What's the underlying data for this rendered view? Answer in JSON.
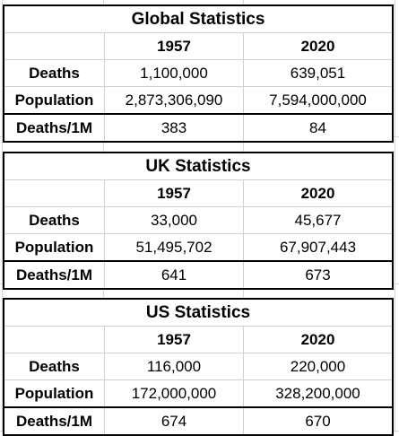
{
  "tables": [
    {
      "title": "Global Statistics",
      "headers": [
        "",
        "1957",
        "2020"
      ],
      "rows": [
        {
          "label": "Deaths",
          "v1957": "1,100,000",
          "v2020": "639,051"
        },
        {
          "label": "Population",
          "v1957": "2,873,306,090",
          "v2020": "7,594,000,000"
        },
        {
          "label": "Deaths/1M",
          "v1957": "383",
          "v2020": "84"
        }
      ]
    },
    {
      "title": "UK Statistics",
      "headers": [
        "",
        "1957",
        "2020"
      ],
      "rows": [
        {
          "label": "Deaths",
          "v1957": "33,000",
          "v2020": "45,677"
        },
        {
          "label": "Population",
          "v1957": "51,495,702",
          "v2020": "67,907,443"
        },
        {
          "label": "Deaths/1M",
          "v1957": "641",
          "v2020": "673"
        }
      ]
    },
    {
      "title": "US Statistics",
      "headers": [
        "",
        "1957",
        "2020"
      ],
      "rows": [
        {
          "label": "Deaths",
          "v1957": "116,000",
          "v2020": "220,000"
        },
        {
          "label": "Population",
          "v1957": "172,000,000",
          "v2020": "328,200,000"
        },
        {
          "label": "Deaths/1M",
          "v1957": "674",
          "v2020": "670"
        }
      ]
    }
  ]
}
